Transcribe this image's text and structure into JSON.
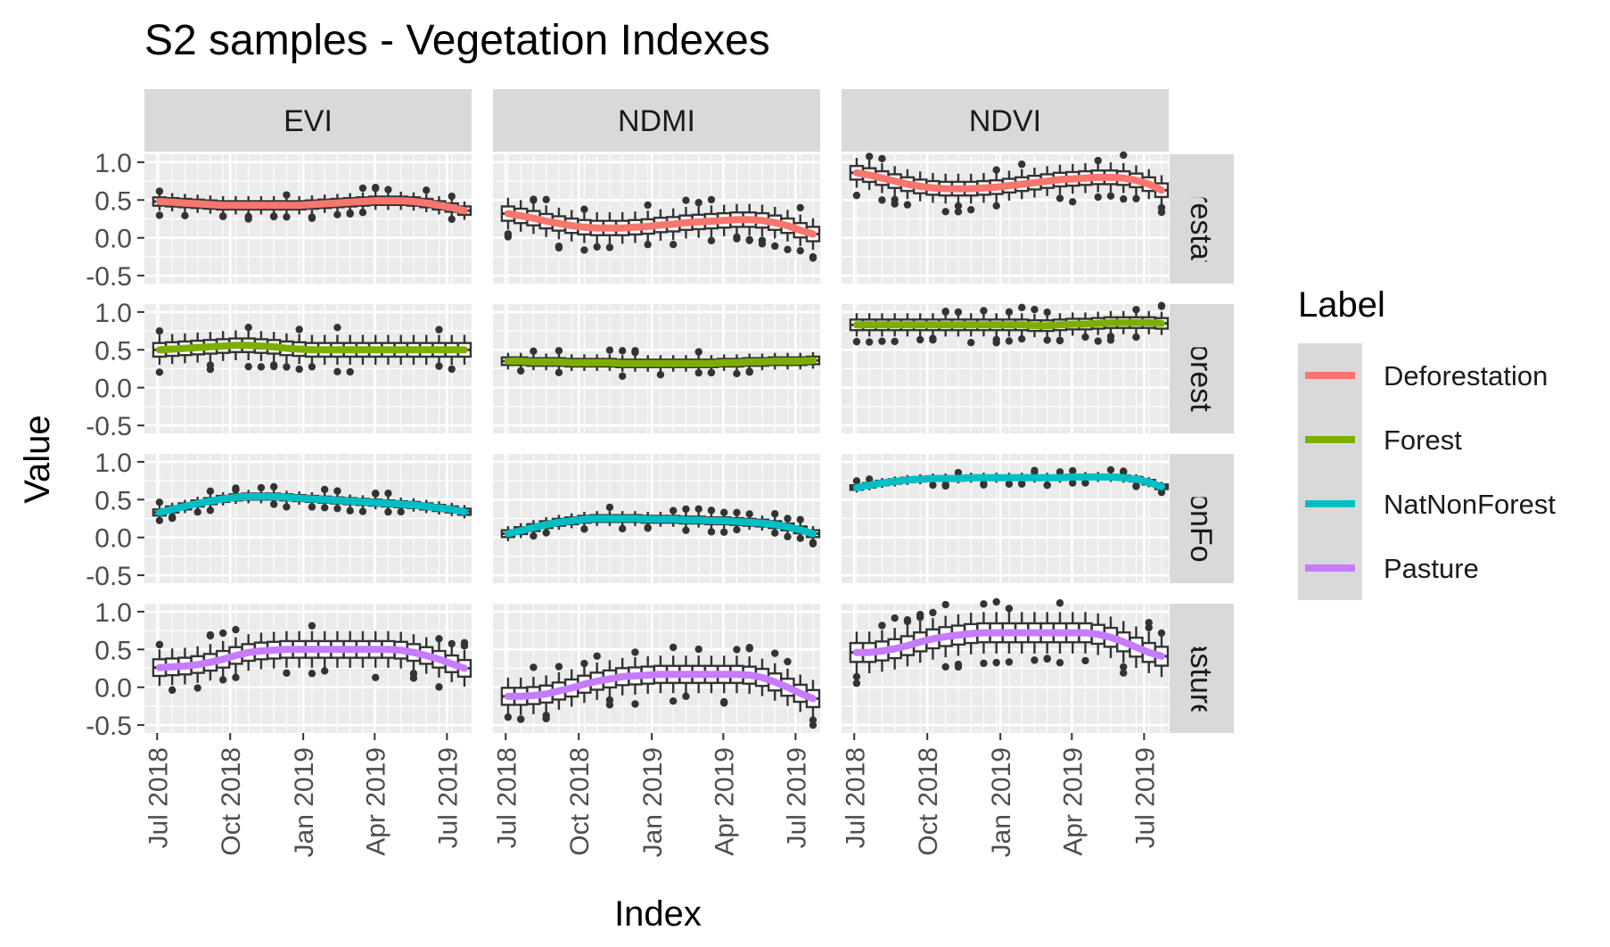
{
  "chart_data": {
    "type": "boxplot-facet",
    "title": "S2 samples - Vegetation Indexes",
    "xlabel": "Index",
    "ylabel": "Value",
    "columns": [
      "EVI",
      "NDMI",
      "NDVI"
    ],
    "rows": [
      {
        "key": "Deforestation",
        "strip_label": "Deforestation"
      },
      {
        "key": "Forest",
        "strip_label": "Forest"
      },
      {
        "key": "NatNonForest",
        "strip_label": "NatNonForest"
      },
      {
        "key": "Pasture",
        "strip_label": "Pasture"
      }
    ],
    "ylim": [
      -0.5,
      1.0
    ],
    "y_ticks": [
      "1.0",
      "0.5",
      "0.0",
      "-0.5"
    ],
    "x_range": [
      "2018-06-15",
      "2019-08-01"
    ],
    "x_ticks": [
      {
        "date": "2018-07-01",
        "label": "Jul 2018"
      },
      {
        "date": "2018-10-01",
        "label": "Oct 2018"
      },
      {
        "date": "2019-01-01",
        "label": "Jan 2019"
      },
      {
        "date": "2019-04-01",
        "label": "Apr 2019"
      },
      {
        "date": "2019-07-01",
        "label": "Jul 2019"
      }
    ],
    "box_dates": [
      "2018-07-04",
      "2018-07-20",
      "2018-08-05",
      "2018-08-21",
      "2018-09-06",
      "2018-09-22",
      "2018-10-08",
      "2018-10-24",
      "2018-11-09",
      "2018-11-25",
      "2018-12-11",
      "2018-12-27",
      "2019-01-12",
      "2019-01-28",
      "2019-02-13",
      "2019-03-01",
      "2019-03-17",
      "2019-04-02",
      "2019-04-18",
      "2019-05-04",
      "2019-05-20",
      "2019-06-05",
      "2019-06-21",
      "2019-07-07",
      "2019-07-23"
    ],
    "legend": {
      "title": "Label",
      "position": "right",
      "items": [
        {
          "name": "Deforestation",
          "color": "#F8766D"
        },
        {
          "name": "Forest",
          "color": "#7CAE00"
        },
        {
          "name": "NatNonForest",
          "color": "#00BFC4"
        },
        {
          "name": "Pasture",
          "color": "#C77CFF"
        }
      ]
    },
    "trend_lines": {
      "Deforestation": {
        "EVI": [
          0.48,
          0.47,
          0.46,
          0.45,
          0.44,
          0.43,
          0.43,
          0.43,
          0.43,
          0.43,
          0.43,
          0.43,
          0.44,
          0.45,
          0.46,
          0.47,
          0.48,
          0.49,
          0.49,
          0.49,
          0.48,
          0.46,
          0.43,
          0.4,
          0.36
        ],
        "NDMI": [
          0.32,
          0.29,
          0.26,
          0.22,
          0.19,
          0.16,
          0.14,
          0.13,
          0.13,
          0.13,
          0.14,
          0.15,
          0.17,
          0.18,
          0.2,
          0.21,
          0.22,
          0.23,
          0.24,
          0.24,
          0.23,
          0.2,
          0.16,
          0.1,
          0.05
        ],
        "NDVI": [
          0.86,
          0.83,
          0.79,
          0.75,
          0.71,
          0.68,
          0.66,
          0.65,
          0.65,
          0.65,
          0.66,
          0.67,
          0.69,
          0.71,
          0.73,
          0.75,
          0.77,
          0.78,
          0.79,
          0.8,
          0.8,
          0.79,
          0.76,
          0.71,
          0.63
        ]
      },
      "Forest": {
        "EVI": [
          0.5,
          0.51,
          0.52,
          0.53,
          0.54,
          0.55,
          0.56,
          0.56,
          0.55,
          0.54,
          0.52,
          0.51,
          0.5,
          0.5,
          0.5,
          0.5,
          0.5,
          0.5,
          0.5,
          0.5,
          0.5,
          0.5,
          0.5,
          0.5,
          0.5
        ],
        "NDMI": [
          0.35,
          0.35,
          0.34,
          0.34,
          0.34,
          0.33,
          0.33,
          0.33,
          0.33,
          0.32,
          0.32,
          0.32,
          0.32,
          0.32,
          0.32,
          0.32,
          0.32,
          0.33,
          0.33,
          0.34,
          0.34,
          0.35,
          0.35,
          0.35,
          0.36
        ],
        "NDVI": [
          0.83,
          0.83,
          0.83,
          0.83,
          0.83,
          0.83,
          0.83,
          0.83,
          0.83,
          0.83,
          0.83,
          0.83,
          0.83,
          0.83,
          0.82,
          0.82,
          0.83,
          0.84,
          0.84,
          0.85,
          0.86,
          0.86,
          0.86,
          0.86,
          0.85
        ]
      },
      "NatNonForest": {
        "EVI": [
          0.33,
          0.37,
          0.41,
          0.45,
          0.48,
          0.51,
          0.53,
          0.54,
          0.54,
          0.54,
          0.53,
          0.52,
          0.51,
          0.5,
          0.49,
          0.48,
          0.47,
          0.46,
          0.45,
          0.44,
          0.43,
          0.41,
          0.39,
          0.37,
          0.34
        ],
        "NDMI": [
          0.05,
          0.09,
          0.13,
          0.17,
          0.2,
          0.22,
          0.24,
          0.25,
          0.25,
          0.25,
          0.25,
          0.24,
          0.24,
          0.24,
          0.23,
          0.23,
          0.22,
          0.22,
          0.21,
          0.2,
          0.19,
          0.17,
          0.14,
          0.1,
          0.05
        ],
        "NDVI": [
          0.66,
          0.69,
          0.72,
          0.74,
          0.76,
          0.77,
          0.78,
          0.78,
          0.78,
          0.79,
          0.79,
          0.79,
          0.79,
          0.79,
          0.79,
          0.79,
          0.79,
          0.8,
          0.8,
          0.8,
          0.8,
          0.79,
          0.77,
          0.73,
          0.67
        ]
      },
      "Pasture": {
        "EVI": [
          0.26,
          0.27,
          0.28,
          0.3,
          0.33,
          0.37,
          0.42,
          0.46,
          0.48,
          0.49,
          0.5,
          0.5,
          0.5,
          0.5,
          0.5,
          0.5,
          0.5,
          0.5,
          0.5,
          0.49,
          0.46,
          0.42,
          0.37,
          0.31,
          0.25
        ],
        "NDMI": [
          -0.12,
          -0.12,
          -0.11,
          -0.09,
          -0.05,
          -0.01,
          0.04,
          0.08,
          0.11,
          0.14,
          0.15,
          0.16,
          0.17,
          0.17,
          0.17,
          0.17,
          0.17,
          0.17,
          0.17,
          0.16,
          0.13,
          0.07,
          0.0,
          -0.08,
          -0.15
        ],
        "NDVI": [
          0.46,
          0.46,
          0.48,
          0.51,
          0.55,
          0.6,
          0.64,
          0.67,
          0.69,
          0.71,
          0.72,
          0.72,
          0.72,
          0.72,
          0.72,
          0.72,
          0.72,
          0.72,
          0.72,
          0.7,
          0.66,
          0.6,
          0.53,
          0.46,
          0.41
        ]
      }
    },
    "box_spread": {
      "Deforestation": {
        "EVI": 0.22,
        "NDMI": 0.38,
        "NDVI": 0.36
      },
      "Forest": {
        "EVI": 0.36,
        "NDMI": 0.2,
        "NDVI": 0.28
      },
      "NatNonForest": {
        "EVI": 0.16,
        "NDMI": 0.18,
        "NDVI": 0.12
      },
      "Pasture": {
        "EVI": 0.44,
        "NDMI": 0.45,
        "NDVI": 0.5
      }
    },
    "colors": {
      "panel_bg": "#EBEBEB",
      "grid": "#FFFFFF",
      "strip_bg": "#D9D9D9",
      "box": "#333333"
    }
  }
}
